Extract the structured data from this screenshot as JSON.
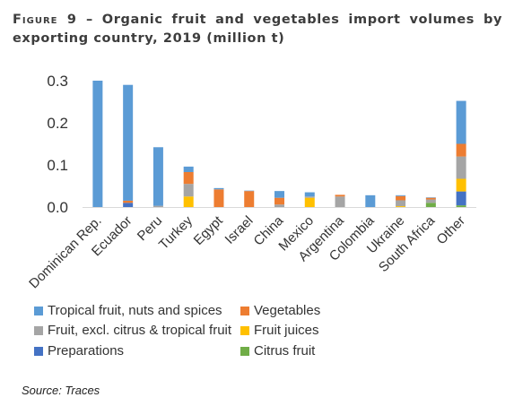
{
  "figure": {
    "label": "Figure 9",
    "dash": "–",
    "title": "Organic fruit and vegetables import volumes by exporting country, 2019 (million t)",
    "source": "Source: Traces"
  },
  "chart_data": {
    "type": "bar",
    "stacked": true,
    "categories": [
      "Dominican Rep.",
      "Ecuador",
      "Peru",
      "Turkey",
      "Egypt",
      "Israel",
      "China",
      "Mexico",
      "Argentina",
      "Colombia",
      "Ukraine",
      "South Africa",
      "Other"
    ],
    "ylim": [
      0,
      0.3
    ],
    "yticks": [
      "0.0",
      "0.1",
      "0.2",
      "0.3"
    ],
    "grid": false,
    "legend_position": "bottom",
    "series": [
      {
        "name": "Citrus fruit",
        "color": "#70ad47",
        "values": [
          0,
          0,
          0,
          0,
          0,
          0,
          0,
          0,
          0,
          0,
          0,
          0.01,
          0.004
        ]
      },
      {
        "name": "Preparations",
        "color": "#4472c4",
        "values": [
          0,
          0.01,
          0,
          0,
          0,
          0,
          0,
          0,
          0,
          0,
          0,
          0,
          0.033
        ]
      },
      {
        "name": "Fruit juices",
        "color": "#ffc000",
        "values": [
          0,
          0,
          0,
          0.025,
          0,
          0,
          0,
          0.022,
          0,
          0,
          0.002,
          0,
          0.03
        ]
      },
      {
        "name": "Fruit, excl. citrus & tropical fruit",
        "color": "#a5a5a5",
        "values": [
          0,
          0,
          0.003,
          0.03,
          0,
          0,
          0.006,
          0.003,
          0.025,
          0,
          0.014,
          0.008,
          0.053
        ]
      },
      {
        "name": "Vegetables",
        "color": "#ed7d31",
        "values": [
          0,
          0.005,
          0,
          0.028,
          0.042,
          0.038,
          0.016,
          0,
          0.004,
          0,
          0.01,
          0.004,
          0.03
        ]
      },
      {
        "name": "Tropical fruit, nuts and spices",
        "color": "#5b9bd5",
        "values": [
          0.3,
          0.275,
          0.139,
          0.013,
          0.003,
          0.001,
          0.016,
          0.01,
          0,
          0.028,
          0.002,
          0.001,
          0.102
        ]
      }
    ]
  },
  "legend_layout": [
    [
      "Tropical fruit, nuts and spices",
      "Vegetables"
    ],
    [
      "Fruit, excl. citrus & tropical fruit",
      "Fruit juices"
    ],
    [
      "Preparations",
      "Citrus fruit"
    ]
  ]
}
